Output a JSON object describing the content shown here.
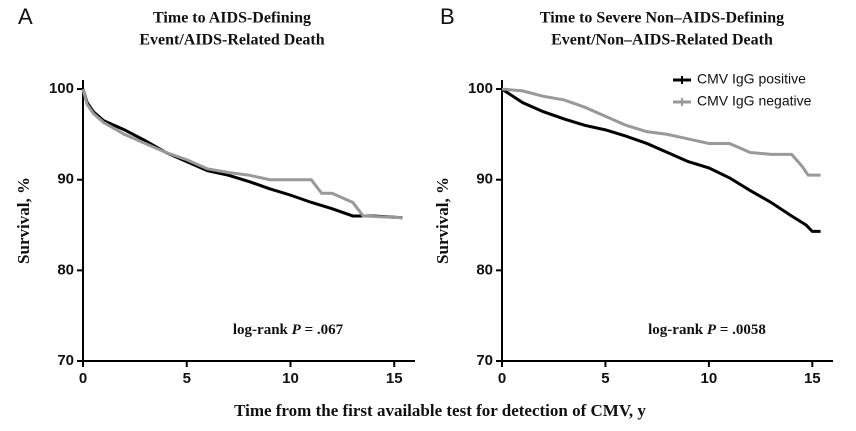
{
  "x_label": "Time from the first available test for detection of CMV, y",
  "chart_data": [
    {
      "type": "line",
      "panel": "A",
      "title": [
        "Time to AIDS-Defining",
        "Event/AIDS-Related Death"
      ],
      "y_label": "Survival, %",
      "xlim": [
        0,
        16
      ],
      "ylim": [
        70,
        101
      ],
      "xticks": [
        0,
        5,
        10,
        15
      ],
      "yticks": [
        70,
        80,
        90,
        100
      ],
      "annotation": {
        "prefix": "log-rank ",
        "p": "P",
        "suffix": " = .067"
      },
      "series": [
        {
          "color": "#000000",
          "x": [
            0,
            0.2,
            0.5,
            1,
            2,
            3,
            4,
            5,
            6,
            7,
            8,
            9,
            10,
            11,
            12,
            13,
            14,
            15.4
          ],
          "values": [
            100,
            98.5,
            97.5,
            96.5,
            95.5,
            94.3,
            93,
            92,
            91,
            90.5,
            89.8,
            89,
            88.3,
            87.5,
            86.8,
            86,
            86,
            85.8
          ]
        },
        {
          "color": "#999999",
          "x": [
            0,
            0.2,
            0.5,
            1,
            2,
            3,
            4,
            5,
            6,
            7,
            8,
            9,
            10,
            11,
            11.5,
            12,
            13,
            13.5,
            15.4
          ],
          "values": [
            100,
            98.3,
            97.3,
            96.3,
            95,
            94,
            93,
            92.2,
            91.2,
            90.8,
            90.5,
            90,
            90,
            90,
            88.5,
            88.5,
            87.5,
            86,
            85.8
          ]
        }
      ]
    },
    {
      "type": "line",
      "panel": "B",
      "title": [
        "Time to Severe Non–AIDS-Defining",
        "Event/Non–AIDS-Related Death"
      ],
      "y_label": "Survival, %",
      "xlim": [
        0,
        16
      ],
      "ylim": [
        70,
        101
      ],
      "xticks": [
        0,
        5,
        10,
        15
      ],
      "yticks": [
        70,
        80,
        90,
        100
      ],
      "annotation": {
        "prefix": "log-rank ",
        "p": "P",
        "suffix": " = .0058"
      },
      "legend": "upper right",
      "series": [
        {
          "name": "CMV IgG positive",
          "color": "#000000",
          "x": [
            0,
            1,
            2,
            3,
            4,
            5,
            6,
            7,
            8,
            9,
            10,
            11,
            12,
            13,
            14,
            14.7,
            15,
            15.4
          ],
          "values": [
            100,
            98.5,
            97.5,
            96.7,
            96,
            95.5,
            94.8,
            94,
            93,
            92,
            91.3,
            90.2,
            88.8,
            87.5,
            86,
            85,
            84.3,
            84.3
          ]
        },
        {
          "name": "CMV IgG negative",
          "color": "#999999",
          "x": [
            0,
            1,
            2,
            3,
            4,
            5,
            6,
            7,
            8,
            9,
            10,
            11,
            12,
            13,
            14,
            14.5,
            14.8,
            15.4
          ],
          "values": [
            100,
            99.8,
            99.2,
            98.8,
            98,
            97,
            96,
            95.3,
            95,
            94.5,
            94,
            94,
            93,
            92.8,
            92.8,
            91.5,
            90.5,
            90.5
          ]
        }
      ]
    }
  ]
}
